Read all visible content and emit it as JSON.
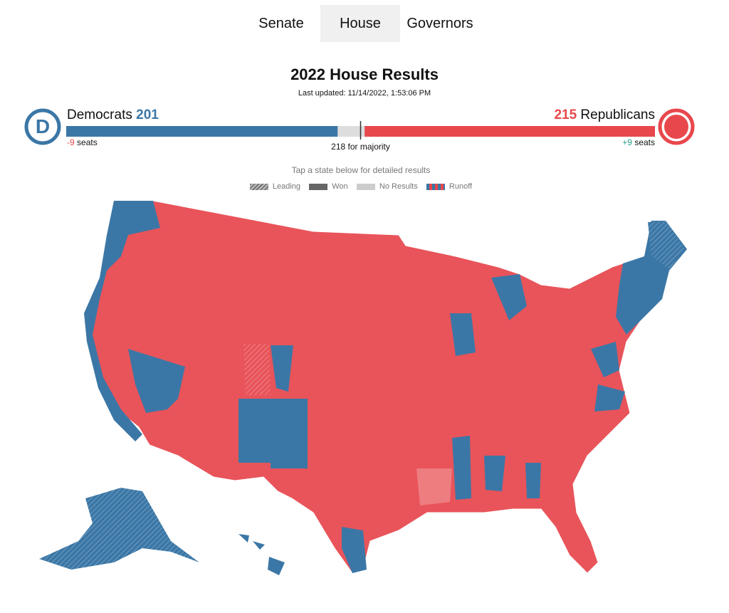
{
  "tabs": [
    "Senate",
    "House",
    "Governors"
  ],
  "header": {
    "title": "2022 House Results",
    "updated": "Last updated: 11/14/2022, 1:53:06 PM"
  },
  "seats": {
    "democrats": {
      "name": "Democrats",
      "count": 201,
      "change": "-9",
      "change_unit": "seats"
    },
    "republicans": {
      "name": "Republicans",
      "count": 215,
      "change": "+9",
      "change_unit": "seats"
    },
    "majority": {
      "count": 218,
      "label": "for majority"
    }
  },
  "instruction": "Tap a state below for detailed results",
  "legend": [
    "Leading",
    "Won",
    "No Results",
    "Runoff"
  ]
}
